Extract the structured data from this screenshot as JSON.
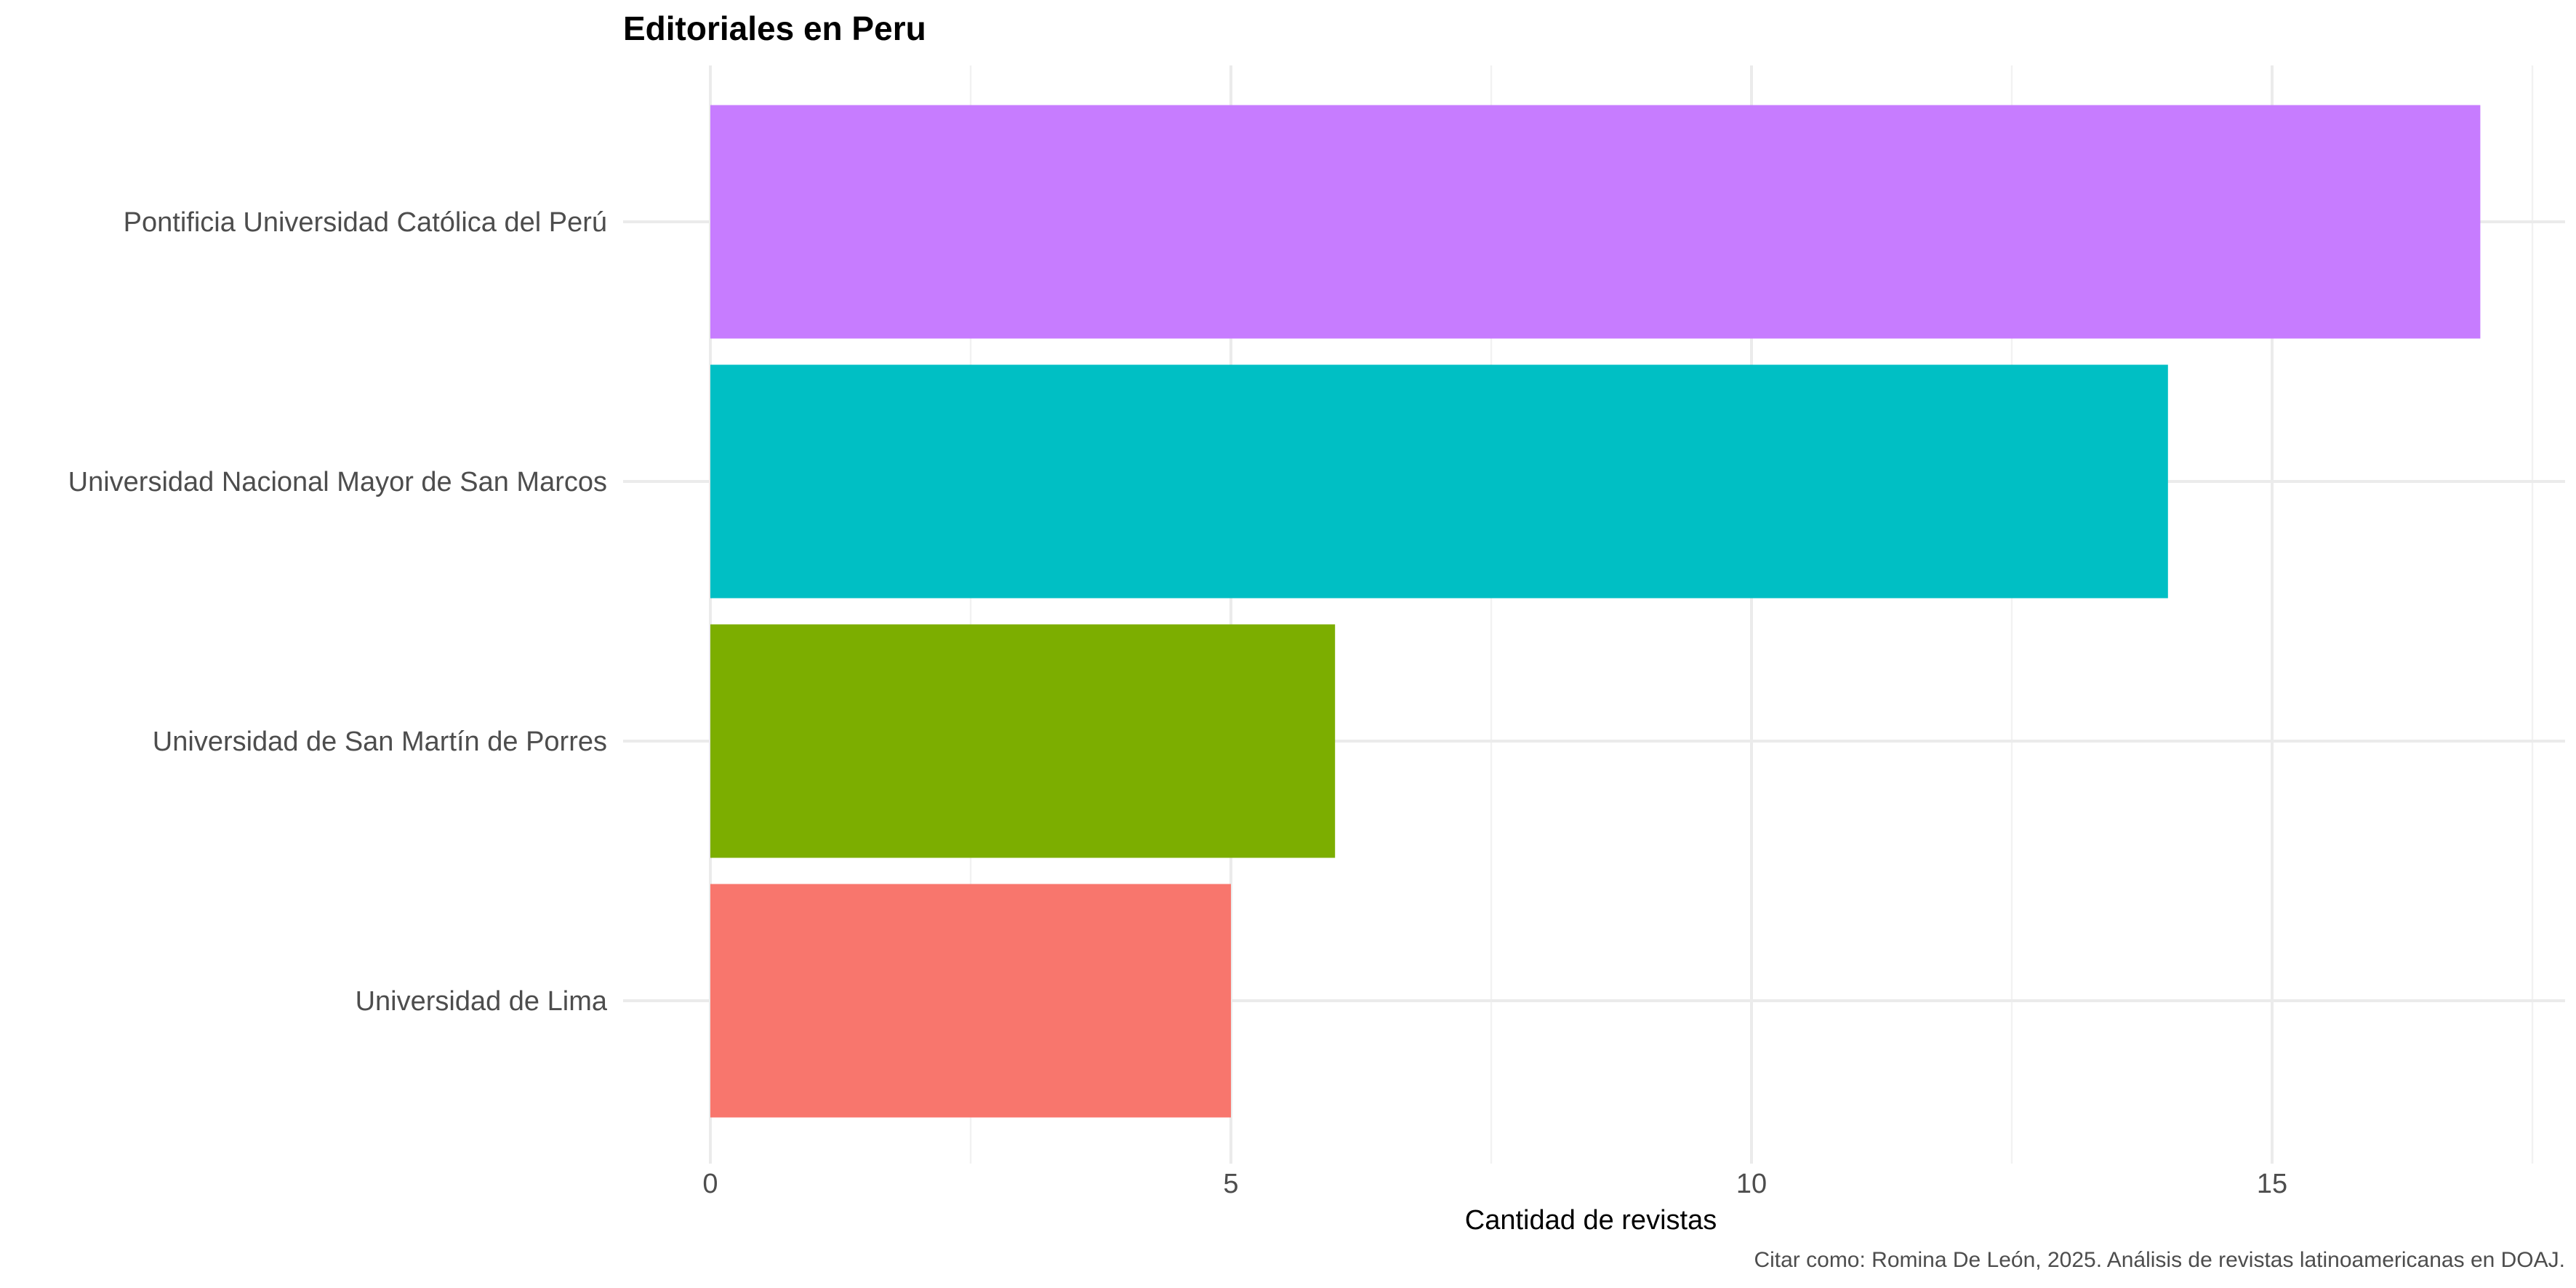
{
  "chart_data": {
    "type": "bar",
    "orientation": "horizontal",
    "title": "Editoriales en Peru",
    "xlabel": "Cantidad de revistas",
    "ylabel": "",
    "caption": "Citar como: Romina De León, 2025. Análisis de revistas latinoamericanas en DOAJ.",
    "categories": [
      "Pontificia Universidad Católica del Perú",
      "Universidad Nacional Mayor de San Marcos",
      "Universidad de San Martín de Porres",
      "Universidad de Lima"
    ],
    "values": [
      17,
      14,
      6,
      5
    ],
    "colors": [
      "#C77CFF",
      "#00BFC4",
      "#7CAE00",
      "#F8766D"
    ],
    "xlim": [
      0,
      17.85
    ],
    "xticks": [
      0,
      5,
      10,
      15
    ],
    "xtick_labels": [
      "0",
      "5",
      "10",
      "15"
    ],
    "legend": "none",
    "grid": true
  }
}
